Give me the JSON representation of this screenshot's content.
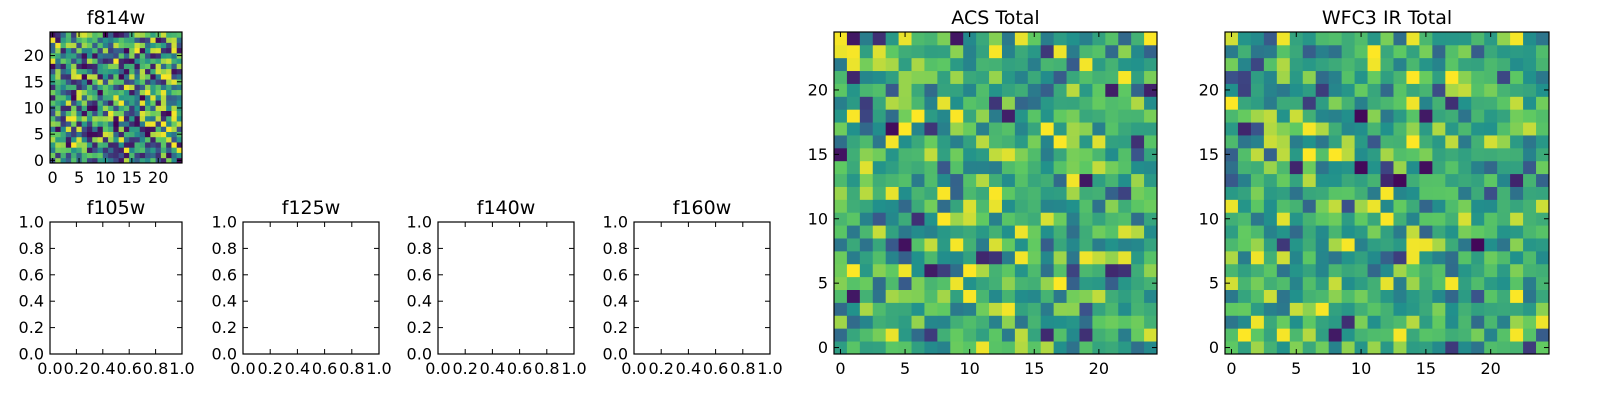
{
  "colormap": [
    "#440154",
    "#3b528b",
    "#21918c",
    "#5ec962",
    "#fde725"
  ],
  "chart_data": [
    {
      "type": "heatmap",
      "title": "f814w",
      "grid_size": 25,
      "xlim": [
        -0.5,
        24.5
      ],
      "ylim": [
        -0.5,
        24.5
      ],
      "xticks": [
        0,
        5,
        10,
        15,
        20
      ],
      "yticks": [
        0,
        5,
        10,
        15,
        20
      ],
      "grid": false,
      "value_range": [
        0,
        1
      ],
      "values": "uniform random noise, 25x25 cells (per-pixel values not legible)"
    },
    {
      "type": "scatter",
      "title": "f105w",
      "empty": true,
      "xlim": [
        0,
        1
      ],
      "ylim": [
        0,
        1
      ],
      "xticks": [
        "0.0",
        "0.2",
        "0.4",
        "0.6",
        "0.8",
        "1.0"
      ],
      "yticks": [
        "0.0",
        "0.2",
        "0.4",
        "0.6",
        "0.8",
        "1.0"
      ]
    },
    {
      "type": "scatter",
      "title": "f125w",
      "empty": true,
      "xlim": [
        0,
        1
      ],
      "ylim": [
        0,
        1
      ],
      "xticks": [
        "0.0",
        "0.2",
        "0.4",
        "0.6",
        "0.8",
        "1.0"
      ],
      "yticks": [
        "0.0",
        "0.2",
        "0.4",
        "0.6",
        "0.8",
        "1.0"
      ]
    },
    {
      "type": "scatter",
      "title": "f140w",
      "empty": true,
      "xlim": [
        0,
        1
      ],
      "ylim": [
        0,
        1
      ],
      "xticks": [
        "0.0",
        "0.2",
        "0.4",
        "0.6",
        "0.8",
        "1.0"
      ],
      "yticks": [
        "0.0",
        "0.2",
        "0.4",
        "0.6",
        "0.8",
        "1.0"
      ]
    },
    {
      "type": "scatter",
      "title": "f160w",
      "empty": true,
      "xlim": [
        0,
        1
      ],
      "ylim": [
        0,
        1
      ],
      "xticks": [
        "0.0",
        "0.2",
        "0.4",
        "0.6",
        "0.8",
        "1.0"
      ],
      "yticks": [
        "0.0",
        "0.2",
        "0.4",
        "0.6",
        "0.8",
        "1.0"
      ]
    },
    {
      "type": "heatmap",
      "title": "ACS Total",
      "grid_size": 25,
      "xlim": [
        -0.5,
        24.5
      ],
      "ylim": [
        -0.5,
        24.5
      ],
      "xticks": [
        0,
        5,
        10,
        15,
        20
      ],
      "yticks": [
        0,
        5,
        10,
        15,
        20
      ],
      "grid": false,
      "value_range": [
        0,
        1
      ],
      "values": "random noise centred mid-range, 25x25 cells (per-pixel values not legible)"
    },
    {
      "type": "heatmap",
      "title": "WFC3 IR Total",
      "grid_size": 25,
      "xlim": [
        -0.5,
        24.5
      ],
      "ylim": [
        -0.5,
        24.5
      ],
      "xticks": [
        0,
        5,
        10,
        15,
        20
      ],
      "yticks": [
        0,
        5,
        10,
        15,
        20
      ],
      "grid": false,
      "value_range": [
        0,
        1
      ],
      "values": "random noise centred mid-range, 25x25 cells (per-pixel values not legible)"
    }
  ]
}
